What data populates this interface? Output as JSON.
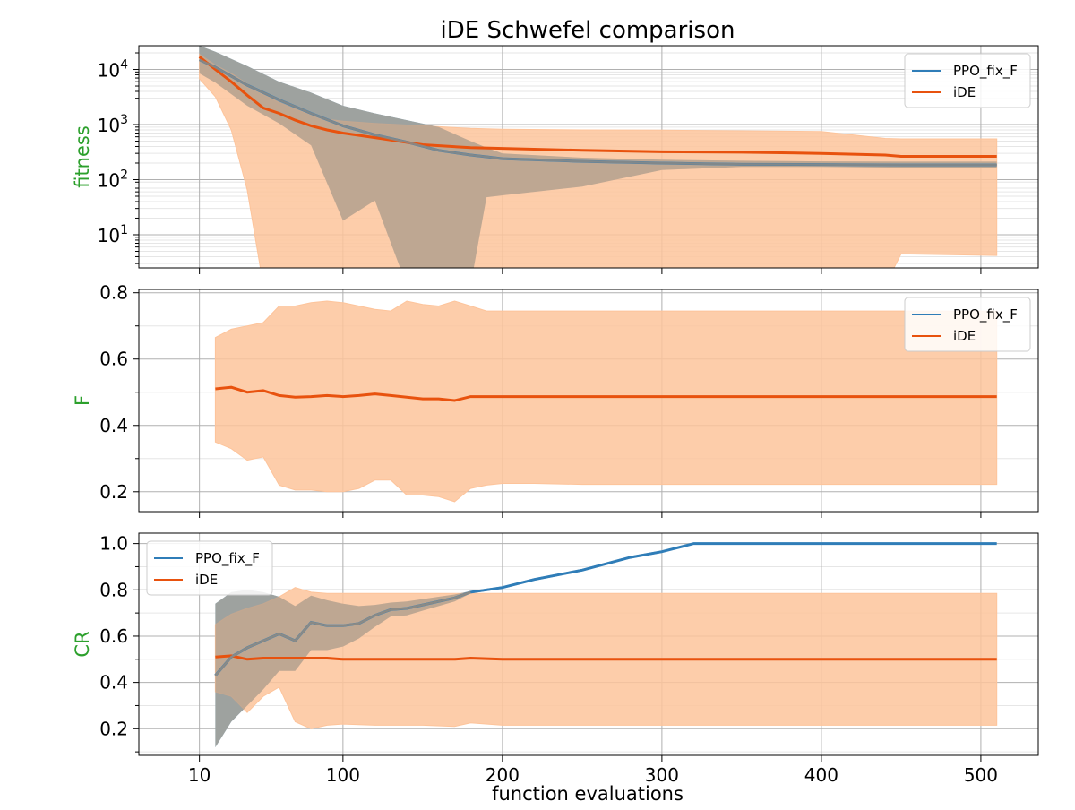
{
  "figure": {
    "title": "iDE Schwefel comparison",
    "xlabel": "function evaluations"
  },
  "colors": {
    "ppo_line": "#2f7db8",
    "ppo_band": "#6aaed6",
    "ide_line": "#e8520e",
    "ide_band": "#fdc49b",
    "overlap_band": "#b09e8c",
    "ylabel_color": "#2ca02c",
    "grid": "#b0b0b0"
  },
  "chart_data": [
    {
      "type": "line",
      "name": "fitness",
      "ylabel": "fitness",
      "yscale": "log",
      "ylim": [
        2.5,
        27000
      ],
      "xlim": [
        -28,
        536
      ],
      "xticks": [
        10,
        100,
        200,
        300,
        400,
        500
      ],
      "yticks": [
        10,
        100,
        1000,
        10000
      ],
      "ytick_labels": [
        [
          "10",
          "1"
        ],
        [
          "10",
          "2"
        ],
        [
          "10",
          "3"
        ],
        [
          "10",
          "4"
        ]
      ],
      "grid": true,
      "legend": "top-right",
      "series": [
        {
          "name": "PPO_fix_F",
          "color": "#2f7db8",
          "band_color": "#6aaed6",
          "x": [
            10,
            20,
            40,
            60,
            80,
            100,
            120,
            140,
            160,
            180,
            190,
            200,
            250,
            300,
            350,
            400,
            450,
            510
          ],
          "mean": [
            15000,
            11000,
            5200,
            2800,
            1600,
            950,
            650,
            480,
            340,
            280,
            260,
            240,
            215,
            200,
            190,
            188,
            185,
            185
          ],
          "upper": [
            27000,
            21000,
            11500,
            6000,
            3800,
            2200,
            1600,
            1200,
            900,
            500,
            380,
            300,
            250,
            230,
            220,
            215,
            212,
            212
          ],
          "lower": [
            8500,
            5800,
            2200,
            1050,
            420,
            18,
            42,
            1.2,
            1.2,
            1.2,
            48,
            52,
            75,
            150,
            170,
            170,
            165,
            165
          ]
        },
        {
          "name": "iDE",
          "color": "#e8520e",
          "band_color": "#fdc49b",
          "x": [
            10,
            20,
            30,
            40,
            50,
            60,
            70,
            80,
            90,
            100,
            120,
            150,
            180,
            200,
            250,
            300,
            350,
            400,
            440,
            450,
            510
          ],
          "mean": [
            17000,
            10000,
            6000,
            3400,
            2000,
            1600,
            1200,
            950,
            800,
            700,
            580,
            430,
            380,
            370,
            340,
            320,
            315,
            300,
            280,
            265,
            265
          ],
          "upper": [
            19000,
            12000,
            8500,
            5500,
            3500,
            2500,
            1900,
            1500,
            1250,
            1150,
            1050,
            950,
            850,
            820,
            800,
            790,
            770,
            750,
            560,
            550,
            550
          ],
          "lower": [
            6800,
            3200,
            800,
            65,
            1.2,
            1.2,
            1.2,
            1.2,
            1.2,
            1.2,
            1.2,
            1.2,
            1.2,
            1.2,
            1.2,
            1.2,
            1.2,
            1.2,
            1.2,
            4.5,
            4.2
          ]
        }
      ]
    },
    {
      "type": "line",
      "name": "F",
      "ylabel": "F",
      "yscale": "linear",
      "ylim": [
        0.14,
        0.81
      ],
      "xlim": [
        -28,
        536
      ],
      "xticks": [
        10,
        100,
        200,
        300,
        400,
        500
      ],
      "yticks": [
        0.2,
        0.4,
        0.6,
        0.8
      ],
      "ytick_labels": [
        "0.2",
        "0.4",
        "0.6",
        "0.8"
      ],
      "grid": true,
      "legend": "top-right",
      "series": [
        {
          "name": "PPO_fix_F",
          "color": "#2f7db8",
          "band_color": "#6aaed6",
          "x": [],
          "mean": [],
          "upper": [],
          "lower": []
        },
        {
          "name": "iDE",
          "color": "#e8520e",
          "band_color": "#fdc49b",
          "x": [
            20,
            30,
            40,
            50,
            60,
            70,
            80,
            90,
            100,
            110,
            120,
            130,
            140,
            150,
            160,
            170,
            180,
            190,
            200,
            220,
            250,
            300,
            350,
            400,
            450,
            510
          ],
          "mean": [
            0.51,
            0.515,
            0.5,
            0.505,
            0.49,
            0.485,
            0.487,
            0.49,
            0.487,
            0.49,
            0.495,
            0.49,
            0.485,
            0.48,
            0.48,
            0.475,
            0.487,
            0.487,
            0.487,
            0.487,
            0.487,
            0.487,
            0.487,
            0.487,
            0.487,
            0.487
          ],
          "upper": [
            0.665,
            0.69,
            0.7,
            0.71,
            0.76,
            0.76,
            0.77,
            0.775,
            0.77,
            0.76,
            0.75,
            0.745,
            0.775,
            0.765,
            0.76,
            0.775,
            0.76,
            0.745,
            0.745,
            0.745,
            0.745,
            0.745,
            0.745,
            0.745,
            0.745,
            0.745
          ],
          "lower": [
            0.35,
            0.33,
            0.295,
            0.305,
            0.22,
            0.205,
            0.205,
            0.2,
            0.2,
            0.21,
            0.235,
            0.235,
            0.19,
            0.19,
            0.185,
            0.17,
            0.21,
            0.22,
            0.225,
            0.225,
            0.222,
            0.222,
            0.222,
            0.222,
            0.222,
            0.222
          ]
        }
      ]
    },
    {
      "type": "line",
      "name": "CR",
      "ylabel": "CR",
      "yscale": "linear",
      "ylim": [
        0.085,
        1.045
      ],
      "xlim": [
        -28,
        536
      ],
      "xticks": [
        10,
        100,
        200,
        300,
        400,
        500
      ],
      "yticks": [
        0.2,
        0.4,
        0.6,
        0.8,
        1.0
      ],
      "ytick_labels": [
        "0.2",
        "0.4",
        "0.6",
        "0.8",
        "1.0"
      ],
      "grid": true,
      "legend": "top-left",
      "series": [
        {
          "name": "PPO_fix_F",
          "color": "#2f7db8",
          "band_color": "#6aaed6",
          "x": [
            20,
            30,
            40,
            50,
            60,
            70,
            80,
            90,
            100,
            110,
            120,
            130,
            140,
            150,
            160,
            170,
            180,
            190,
            200,
            220,
            250,
            280,
            300,
            320,
            350,
            400,
            450,
            510
          ],
          "mean": [
            0.43,
            0.51,
            0.55,
            0.58,
            0.61,
            0.58,
            0.66,
            0.645,
            0.645,
            0.655,
            0.69,
            0.715,
            0.72,
            0.735,
            0.75,
            0.765,
            0.79,
            0.8,
            0.81,
            0.845,
            0.885,
            0.94,
            0.965,
            1.0,
            1.0,
            1.0,
            1.0,
            1.0
          ],
          "upper": [
            0.74,
            0.79,
            0.8,
            0.79,
            0.77,
            0.73,
            0.775,
            0.755,
            0.74,
            0.73,
            0.735,
            0.745,
            0.75,
            0.76,
            0.77,
            0.78,
            0.795,
            0.805,
            0.815,
            0.85,
            0.89,
            0.945,
            0.97,
            1.0,
            1.0,
            1.0,
            1.0,
            1.0
          ],
          "lower": [
            0.12,
            0.23,
            0.3,
            0.37,
            0.45,
            0.45,
            0.54,
            0.54,
            0.555,
            0.59,
            0.64,
            0.685,
            0.69,
            0.71,
            0.73,
            0.75,
            0.785,
            0.795,
            0.805,
            0.84,
            0.88,
            0.935,
            0.96,
            1.0,
            1.0,
            1.0,
            1.0,
            1.0
          ]
        },
        {
          "name": "iDE",
          "color": "#e8520e",
          "band_color": "#fdc49b",
          "x": [
            20,
            30,
            40,
            50,
            60,
            70,
            80,
            90,
            100,
            120,
            150,
            170,
            180,
            200,
            250,
            300,
            350,
            400,
            450,
            510
          ],
          "mean": [
            0.51,
            0.515,
            0.5,
            0.505,
            0.505,
            0.505,
            0.505,
            0.505,
            0.5,
            0.5,
            0.5,
            0.5,
            0.505,
            0.5,
            0.5,
            0.5,
            0.5,
            0.5,
            0.5,
            0.5
          ],
          "upper": [
            0.65,
            0.695,
            0.72,
            0.74,
            0.77,
            0.81,
            0.79,
            0.785,
            0.785,
            0.785,
            0.785,
            0.785,
            0.785,
            0.785,
            0.785,
            0.785,
            0.785,
            0.785,
            0.785,
            0.785
          ],
          "lower": [
            0.36,
            0.34,
            0.27,
            0.34,
            0.38,
            0.23,
            0.2,
            0.215,
            0.22,
            0.215,
            0.215,
            0.21,
            0.225,
            0.215,
            0.215,
            0.215,
            0.215,
            0.215,
            0.215,
            0.215
          ]
        }
      ]
    }
  ]
}
